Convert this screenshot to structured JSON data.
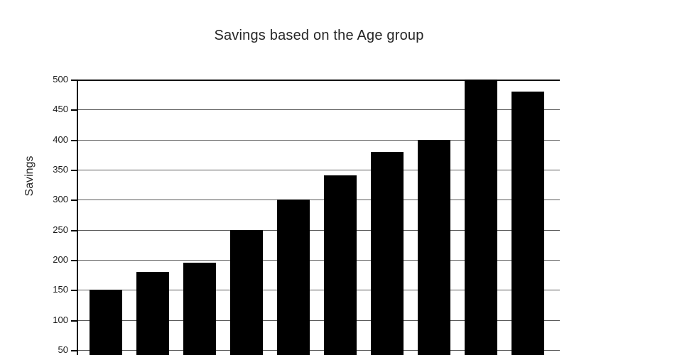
{
  "title": "Savings based on the Age group",
  "y_axis": {
    "label": "Savings",
    "tick_labels": [
      "500",
      "450",
      "400",
      "350",
      "300",
      "250",
      "200",
      "150",
      "100",
      "50"
    ]
  },
  "x_axis": {
    "labels_visible": false
  },
  "chart_data": {
    "type": "bar",
    "title": "Savings based on the Age group",
    "xlabel": "",
    "ylabel": "Savings",
    "values": [
      150,
      180,
      195,
      250,
      300,
      340,
      380,
      400,
      500,
      480
    ],
    "categories": [],
    "yticks": [
      500,
      450,
      400,
      350,
      300,
      250,
      200,
      150,
      100,
      50
    ],
    "ylim": [
      0,
      500
    ],
    "grid": true,
    "legend": false,
    "bar_color": "#000000",
    "note": "bottom of plot and x-axis category labels are cut off by the image edge"
  },
  "colors": {
    "background": "#ffffff",
    "bar": "#000000",
    "gridline": "#595959",
    "axis": "#000000",
    "text": "#262626"
  }
}
